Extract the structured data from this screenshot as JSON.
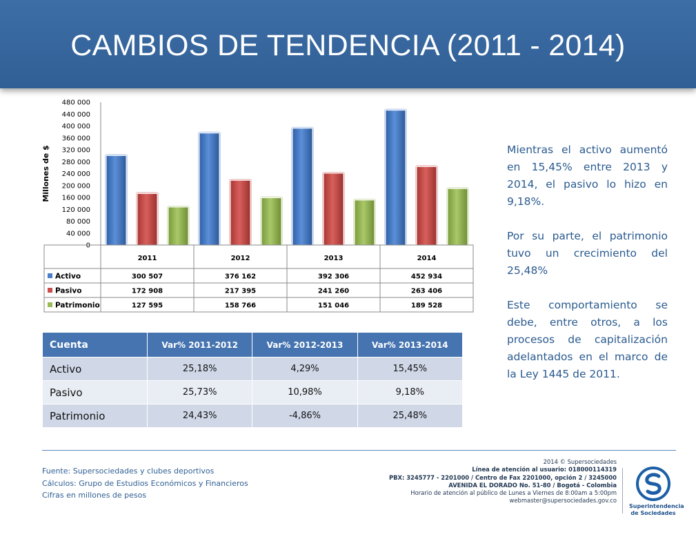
{
  "header": {
    "title": "CAMBIOS DE TENDENCIA (2011 - 2014)"
  },
  "chart_data": {
    "type": "bar",
    "categories": [
      "2011",
      "2012",
      "2013",
      "2014"
    ],
    "series": [
      {
        "name": "Activo",
        "values": [
          300507,
          376162,
          392306,
          452934
        ],
        "labels": [
          "300 507",
          "376 162",
          "392 306",
          "452 934"
        ],
        "color": "#4a7ecb"
      },
      {
        "name": "Pasivo",
        "values": [
          172908,
          217395,
          241260,
          263406
        ],
        "labels": [
          "172 908",
          "217 395",
          "241 260",
          "263 406"
        ],
        "color": "#cc4e4b"
      },
      {
        "name": "Patrimonio",
        "values": [
          127595,
          158766,
          151046,
          189528
        ],
        "labels": [
          "127 595",
          "158 766",
          "151 046",
          "189 528"
        ],
        "color": "#9bbb59"
      }
    ],
    "ylabel": "Millones de $",
    "ylim": [
      0,
      480000
    ],
    "yticks": [
      "0",
      "40 000",
      "80 000",
      "120 000",
      "160 000",
      "200 000",
      "240 000",
      "280 000",
      "320 000",
      "360 000",
      "400 000",
      "440 000",
      "480 000"
    ],
    "grid": false,
    "legend": "data-table"
  },
  "side_text": {
    "p1": "Mientras el activo aumentó en 15,45% entre 2013 y 2014, el pasivo lo hizo en 9,18%.",
    "p2": "Por su parte, el patrimonio tuvo un crecimiento del 25,48%",
    "p3": "Este comportamiento se debe, entre otros, a los procesos de capitalización adelantados en el marco de la Ley 1445 de 2011."
  },
  "var_table": {
    "headers": [
      "Cuenta",
      "Var% 2011-2012",
      "Var% 2012-2013",
      "Var% 2013-2014"
    ],
    "rows": [
      [
        "Activo",
        "25,18%",
        "4,29%",
        "15,45%"
      ],
      [
        "Pasivo",
        "25,73%",
        "10,98%",
        "9,18%"
      ],
      [
        "Patrimonio",
        "24,43%",
        "-4,86%",
        "25,48%"
      ]
    ]
  },
  "sources": {
    "line1": "Fuente: Supersociedades y clubes deportivos",
    "line2": "Cálculos: Grupo de Estudios Económicos y Financieros",
    "line3": "Cifras en millones de pesos"
  },
  "contact": {
    "line1": "2014 © Supersociedades",
    "line2": "Línea de atención al usuario: 018000114319",
    "line3": "PBX: 3245777 - 2201000 / Centro de Fax 2201000, opción 2 / 3245000",
    "line4": "AVENIDA EL DORADO No. 51-80 / Bogotá - Colombia",
    "line5": "Horario de atención al público de Lunes a Viernes de 8:00am a 5:00pm",
    "line6": "webmaster@supersociedades.gov.co"
  },
  "logo": {
    "line1": "Superintendencia",
    "line2": "de Sociedades"
  }
}
